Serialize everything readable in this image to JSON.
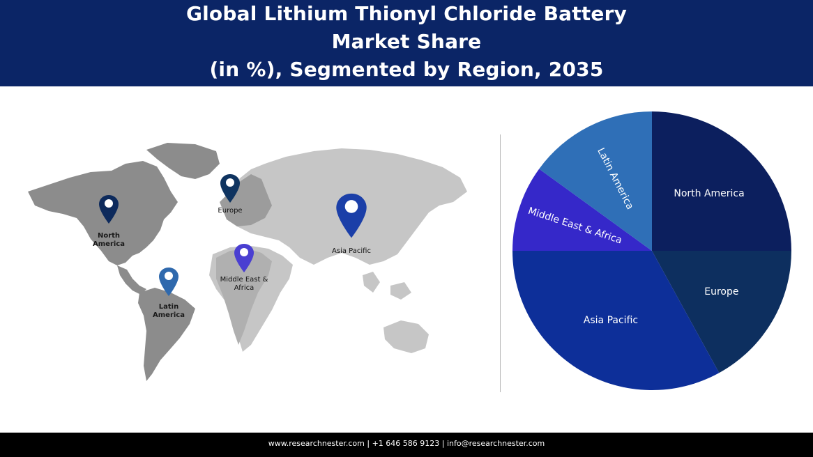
{
  "header": {
    "title_line1": "Global Lithium Thionyl Chloride Battery",
    "title_line2": "Market Share",
    "title_line3": "(in %), Segmented by Region, 2035"
  },
  "map": {
    "pins": [
      {
        "id": "north-america",
        "label_line1": "North",
        "label_line2": "America",
        "color": "#0d2a5c"
      },
      {
        "id": "europe",
        "label_line1": "Europe",
        "label_line2": "",
        "color": "#0f3460"
      },
      {
        "id": "asia-pacific",
        "label_line1": "Asia Pacific",
        "label_line2": "",
        "color": "#1b3fa8"
      },
      {
        "id": "middle-east-africa",
        "label_line1": "Middle East &",
        "label_line2": "Africa",
        "color": "#4a3fd1"
      },
      {
        "id": "latin-america",
        "label_line1": "Latin",
        "label_line2": "America",
        "color": "#2f69ad"
      }
    ]
  },
  "chart_data": {
    "type": "pie",
    "start_angle_deg": 0,
    "direction": "clockwise",
    "categories": [
      "North America",
      "Europe",
      "Asia Pacific",
      "Middle East & Africa",
      "Latin America"
    ],
    "values": [
      25,
      17,
      33,
      10,
      15
    ],
    "colors": [
      "#0c1f5e",
      "#0d2f5f",
      "#0d2f99",
      "#3528c9",
      "#2f6fb7"
    ],
    "labels_rotated": [
      false,
      false,
      false,
      true,
      true
    ]
  },
  "footer": {
    "text": "www.researchnester.com  | +1 646 586 9123 | info@researchnester.com"
  }
}
